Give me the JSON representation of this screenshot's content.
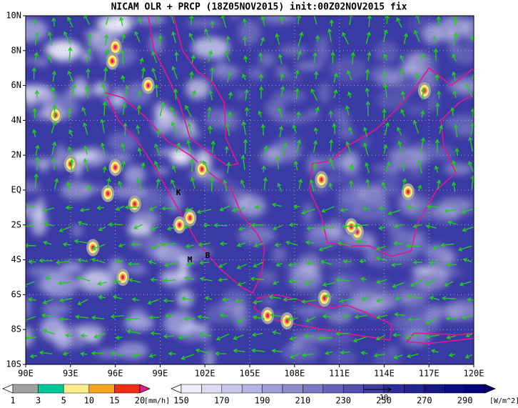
{
  "title": "NICAM OLR + PRCP (18Z05NOV2015) init:00Z02NOV2015 fix",
  "map": {
    "lon_labels": [
      "90E",
      "93E",
      "96E",
      "99E",
      "102E",
      "105E",
      "108E",
      "111E",
      "114E",
      "117E",
      "120E"
    ],
    "lat_labels": [
      "10N",
      "8N",
      "6N",
      "4N",
      "2N",
      "EQ",
      "2S",
      "4S",
      "6S",
      "8S",
      "10S"
    ],
    "markers": [
      "K",
      "M",
      "B"
    ]
  },
  "precip_legend": {
    "labels": [
      "1",
      "3",
      "5",
      "10",
      "15",
      "20"
    ],
    "unit": "[mm/h]",
    "colors": [
      "#ffffff",
      "#a0a0a0",
      "#00c89a",
      "#ffee8a",
      "#f7a21c",
      "#ee2e12",
      "#e8188c"
    ]
  },
  "olr_legend": {
    "labels": [
      "150",
      "170",
      "190",
      "210",
      "230",
      "250",
      "270",
      "290"
    ],
    "unit": "[W/m^2]",
    "colors": [
      "#ffffff",
      "#eeeeff",
      "#dcdcf4",
      "#c8c8ec",
      "#b4b4e2",
      "#a0a0d8",
      "#8c8cce",
      "#7878c4",
      "#6464ba",
      "#5050b0",
      "#3e3ea6",
      "#2e2e9c",
      "#222292",
      "#161688",
      "#0c0c80",
      "#040478",
      "#000070"
    ]
  },
  "vector_reference": "10"
}
